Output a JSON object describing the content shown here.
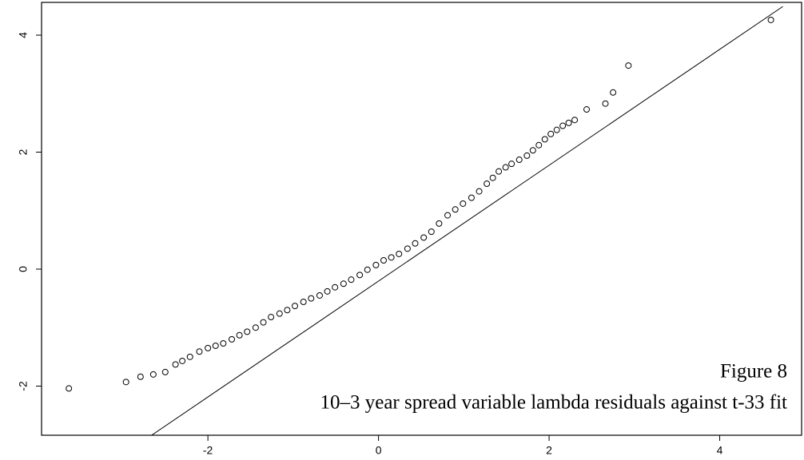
{
  "chart_data": {
    "type": "scatter",
    "annotations": [
      "Figure 8",
      "10–3 year spread variable lambda residuals against t-33 fit"
    ],
    "xlim": [
      -3.95,
      4.96
    ],
    "ylim": [
      -2.84,
      4.56
    ],
    "xticks": [
      -2,
      0,
      2,
      4
    ],
    "yticks": [
      -2,
      0,
      2,
      4
    ],
    "color": "#000000",
    "x": [
      -3.63,
      -2.96,
      -2.79,
      -2.64,
      -2.5,
      -2.38,
      -2.3,
      -2.21,
      -2.1,
      -2.0,
      -1.91,
      -1.82,
      -1.72,
      -1.63,
      -1.54,
      -1.44,
      -1.35,
      -1.26,
      -1.16,
      -1.07,
      -0.98,
      -0.88,
      -0.79,
      -0.69,
      -0.6,
      -0.51,
      -0.41,
      -0.32,
      -0.22,
      -0.13,
      -0.03,
      0.06,
      0.15,
      0.24,
      0.34,
      0.43,
      0.53,
      0.62,
      0.71,
      0.81,
      0.9,
      0.99,
      1.09,
      1.18,
      1.27,
      1.34,
      1.41,
      1.49,
      1.56,
      1.65,
      1.74,
      1.81,
      1.88,
      1.95,
      2.02,
      2.09,
      2.16,
      2.23,
      2.3,
      2.44,
      2.66,
      2.75,
      2.93,
      4.6
    ],
    "y": [
      -2.04,
      -1.93,
      -1.84,
      -1.8,
      -1.76,
      -1.63,
      -1.57,
      -1.5,
      -1.41,
      -1.35,
      -1.31,
      -1.27,
      -1.2,
      -1.13,
      -1.07,
      -1.0,
      -0.91,
      -0.82,
      -0.76,
      -0.7,
      -0.63,
      -0.56,
      -0.5,
      -0.45,
      -0.38,
      -0.31,
      -0.25,
      -0.18,
      -0.1,
      -0.01,
      0.07,
      0.15,
      0.2,
      0.26,
      0.35,
      0.44,
      0.54,
      0.64,
      0.78,
      0.92,
      1.02,
      1.12,
      1.22,
      1.33,
      1.46,
      1.56,
      1.67,
      1.74,
      1.8,
      1.87,
      1.94,
      2.03,
      2.12,
      2.22,
      2.31,
      2.38,
      2.45,
      2.5,
      2.55,
      2.73,
      2.83,
      3.02,
      3.48,
      4.26
    ],
    "reference_line": {
      "x": [
        -2.66,
        4.74
      ],
      "y": [
        -2.84,
        4.49
      ]
    }
  }
}
